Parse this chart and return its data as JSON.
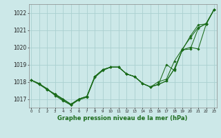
{
  "title": "Graphe pression niveau de la mer (hPa)",
  "background_color": "#cce8e8",
  "grid_color": "#aad0d0",
  "line_color": "#1a6b1a",
  "x_ticks": [
    0,
    1,
    2,
    3,
    4,
    5,
    6,
    7,
    8,
    9,
    10,
    11,
    12,
    13,
    14,
    15,
    16,
    17,
    18,
    19,
    20,
    21,
    22,
    23
  ],
  "ylim": [
    1016.5,
    1022.5
  ],
  "yticks": [
    1017,
    1018,
    1019,
    1020,
    1021,
    1022
  ],
  "line1_x": [
    0,
    1,
    2,
    3,
    4,
    5,
    6,
    7,
    8,
    9,
    10,
    11,
    12,
    13,
    14,
    15,
    16,
    17,
    18,
    19,
    20,
    21,
    22,
    23
  ],
  "line1": [
    1018.1,
    1017.85,
    1017.55,
    1017.25,
    1016.95,
    1016.65,
    1017.0,
    1017.15,
    1018.3,
    1018.7,
    1018.85,
    1018.85,
    1018.45,
    1018.3,
    1017.9,
    1017.7,
    1017.85,
    1019.0,
    1018.65,
    1019.85,
    1019.9,
    1021.1,
    1021.4,
    1022.2
  ],
  "line2_x": [
    0,
    1,
    2,
    3,
    4,
    5,
    6,
    7,
    8,
    9,
    10,
    11,
    12,
    13,
    14,
    15,
    16,
    17,
    18,
    19,
    20,
    21,
    22,
    23
  ],
  "line2": [
    1018.1,
    1017.9,
    1017.6,
    1017.2,
    1016.9,
    1016.65,
    1016.95,
    1017.1,
    1018.25,
    1018.65,
    1018.85,
    1018.85,
    1018.45,
    1018.3,
    1017.9,
    1017.7,
    1018.0,
    1018.15,
    1019.2,
    1019.9,
    1020.55,
    1021.15,
    1021.35,
    1022.2
  ],
  "line3_x": [
    0,
    1,
    2,
    3,
    4,
    5,
    6,
    7,
    8,
    9,
    10,
    11,
    12,
    13,
    14,
    15,
    16,
    17,
    18,
    19,
    20,
    21,
    22,
    23
  ],
  "line3": [
    1018.1,
    1017.9,
    1017.55,
    1017.3,
    1017.0,
    1016.7,
    1017.0,
    1017.15,
    1018.3,
    1018.7,
    1018.85,
    1018.85,
    1018.45,
    1018.3,
    1017.9,
    1017.7,
    1017.85,
    1018.05,
    1018.75,
    1019.85,
    1020.65,
    1021.3,
    1021.35,
    1022.2
  ],
  "line4_x": [
    0,
    1,
    2,
    3,
    4,
    5,
    6,
    7,
    8,
    9,
    10,
    11,
    12,
    13,
    14,
    15,
    16,
    17,
    18,
    19,
    20,
    21,
    22,
    23
  ],
  "line4": [
    1018.1,
    1017.85,
    1017.6,
    1017.25,
    1017.0,
    1016.7,
    1017.0,
    1017.15,
    1018.3,
    1018.7,
    1018.85,
    1018.85,
    1018.45,
    1018.3,
    1017.9,
    1017.7,
    1017.85,
    1018.05,
    1018.75,
    1019.85,
    1020.0,
    1019.9,
    1021.35,
    1022.2
  ]
}
